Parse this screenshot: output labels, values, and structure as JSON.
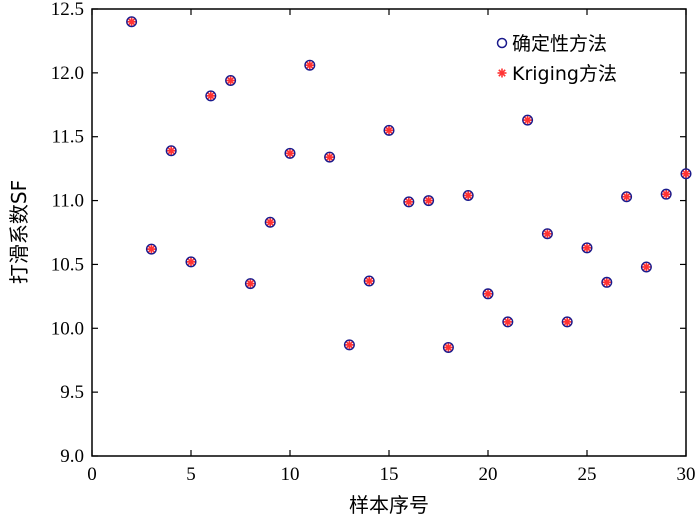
{
  "chart_data": {
    "type": "scatter",
    "xlabel": "样本序号",
    "ylabel": "打滑系数SF",
    "xlim": [
      0,
      30
    ],
    "ylim": [
      9.0,
      12.5
    ],
    "xticks": [
      "0",
      "5",
      "10",
      "15",
      "20",
      "25",
      "30"
    ],
    "yticks": [
      "9.0",
      "9.5",
      "10.0",
      "10.5",
      "11.0",
      "11.5",
      "12.0",
      "12.5"
    ],
    "legend_position": "top-right",
    "colors": {
      "deterministic": "#1a1a8c",
      "kriging": "#ff3333"
    },
    "series": [
      {
        "name": "确定性方法",
        "marker": "open-circle",
        "x": [
          2,
          3,
          4,
          5,
          6,
          7,
          8,
          9,
          10,
          11,
          12,
          13,
          14,
          15,
          16,
          17,
          18,
          19,
          20,
          21,
          22,
          23,
          24,
          25,
          26,
          27,
          28,
          29,
          30
        ],
        "y": [
          12.4,
          10.62,
          11.39,
          10.52,
          11.82,
          11.94,
          10.35,
          10.83,
          11.37,
          12.06,
          11.34,
          9.87,
          10.37,
          11.55,
          10.99,
          11.0,
          9.85,
          11.04,
          10.27,
          10.05,
          11.63,
          10.74,
          10.05,
          10.63,
          10.36,
          11.03,
          10.48,
          11.05,
          11.21
        ]
      },
      {
        "name": "Kriging方法",
        "marker": "asterisk",
        "x": [
          2,
          3,
          4,
          5,
          6,
          7,
          8,
          9,
          10,
          11,
          12,
          13,
          14,
          15,
          16,
          17,
          18,
          19,
          20,
          21,
          22,
          23,
          24,
          25,
          26,
          27,
          28,
          29,
          30
        ],
        "y": [
          12.4,
          10.62,
          11.39,
          10.52,
          11.82,
          11.94,
          10.35,
          10.83,
          11.37,
          12.06,
          11.34,
          9.87,
          10.37,
          11.55,
          10.99,
          11.0,
          9.85,
          11.04,
          10.27,
          10.05,
          11.63,
          10.74,
          10.05,
          10.63,
          10.36,
          11.03,
          10.48,
          11.05,
          11.21
        ]
      }
    ]
  }
}
